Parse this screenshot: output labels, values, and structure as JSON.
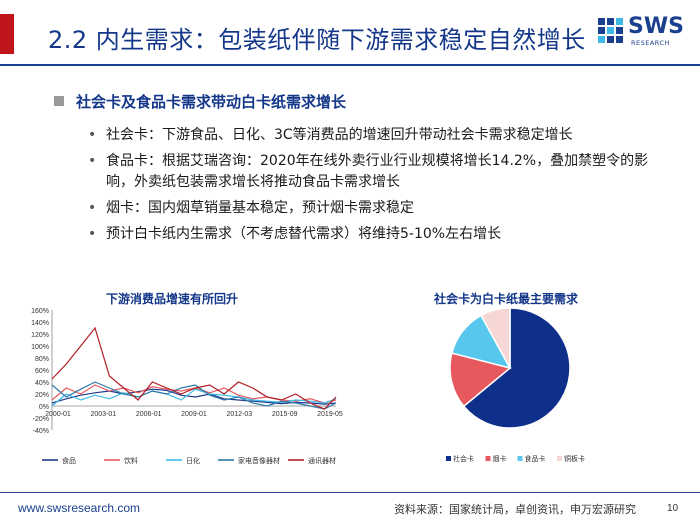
{
  "header": {
    "title": "2.2 内生需求：包装纸伴随下游需求稳定自然增长",
    "logo_word": "SWS",
    "logo_sub": "RESEARCH",
    "accent_color": "#c0151b",
    "brand_color": "#1b3f8f"
  },
  "section": {
    "heading": "社会卡及食品卡需求带动白卡纸需求增长",
    "bullets": [
      "社会卡：下游食品、日化、3C等消费品的增速回升带动社会卡需求稳定增长",
      "食品卡：根据艾瑞咨询：2020年在线外卖行业行业规模将增长14.2%，叠加禁塑令的影响，外卖纸包装需求增长将推动食品卡需求增长",
      "烟卡：国内烟草销量基本稳定，预计烟卡需求稳定",
      "预计白卡纸内生需求（不考虑替代需求）将维持5-10%左右增长"
    ]
  },
  "chart_data": [
    {
      "type": "line",
      "title": "下游消费品增速有所回升",
      "ylim": [
        -0.4,
        1.6
      ],
      "y_ticks": [
        "160%",
        "140%",
        "120%",
        "100%",
        "80%",
        "60%",
        "40%",
        "20%",
        "0%",
        "-20%",
        "-40%"
      ],
      "x_ticks": [
        "2000-01",
        "2003-01",
        "2006-01",
        "2009-01",
        "2012-03",
        "2015-09",
        "2019-05"
      ],
      "x_range": [
        2000.0,
        2019.8
      ],
      "legend_position": "bottom",
      "series": [
        {
          "name": "食品",
          "color": "#1f3a8a",
          "x": [
            2000,
            2001,
            2002,
            2003,
            2004,
            2005,
            2006,
            2007,
            2008,
            2009,
            2010,
            2011,
            2012,
            2013,
            2014,
            2015,
            2016,
            2017,
            2018,
            2019,
            2019.8
          ],
          "y": [
            0.05,
            0.12,
            0.18,
            0.22,
            0.25,
            0.2,
            0.24,
            0.28,
            0.26,
            0.18,
            0.15,
            0.2,
            0.12,
            0.1,
            0.08,
            0.06,
            0.04,
            0.06,
            0.05,
            0.03,
            0.05
          ]
        },
        {
          "name": "饮料",
          "color": "#e8595f",
          "x": [
            2000,
            2001,
            2002,
            2003,
            2004,
            2005,
            2006,
            2007,
            2008,
            2009,
            2010,
            2011,
            2012,
            2013,
            2014,
            2015,
            2016,
            2017,
            2018,
            2019,
            2019.8
          ],
          "y": [
            0.1,
            0.3,
            0.2,
            0.35,
            0.25,
            0.3,
            0.22,
            0.32,
            0.28,
            0.25,
            0.3,
            0.22,
            0.3,
            0.18,
            0.12,
            0.15,
            0.1,
            0.08,
            0.12,
            0.05,
            0.1
          ]
        },
        {
          "name": "日化",
          "color": "#3fb9e6",
          "x": [
            2000,
            2001,
            2002,
            2003,
            2004,
            2005,
            2006,
            2007,
            2008,
            2009,
            2010,
            2011,
            2012,
            2013,
            2014,
            2015,
            2016,
            2017,
            2018,
            2019,
            2019.8
          ],
          "y": [
            0.0,
            0.2,
            0.1,
            0.18,
            0.12,
            0.22,
            0.15,
            0.25,
            0.2,
            0.1,
            0.28,
            0.2,
            0.18,
            0.15,
            0.1,
            0.08,
            0.06,
            0.1,
            0.08,
            0.05,
            0.12
          ]
        },
        {
          "name": "家电音像器材",
          "color": "#2f7aa8",
          "x": [
            2000,
            2001,
            2002,
            2003,
            2004,
            2005,
            2006,
            2007,
            2008,
            2009,
            2010,
            2011,
            2012,
            2013,
            2014,
            2015,
            2016,
            2017,
            2018,
            2019,
            2019.8
          ],
          "y": [
            0.35,
            0.15,
            0.28,
            0.4,
            0.3,
            0.2,
            0.15,
            0.25,
            0.2,
            0.3,
            0.35,
            0.18,
            0.1,
            0.15,
            0.05,
            0.0,
            0.08,
            0.05,
            0.0,
            -0.05,
            0.05
          ]
        },
        {
          "name": "通讯器材",
          "color": "#b21e26",
          "x": [
            2000,
            2001,
            2002,
            2003,
            2004,
            2005,
            2006,
            2007,
            2008,
            2009,
            2010,
            2011,
            2012,
            2013,
            2014,
            2015,
            2016,
            2017,
            2018,
            2019,
            2019.8
          ],
          "y": [
            0.45,
            0.7,
            1.0,
            1.3,
            0.5,
            0.3,
            0.1,
            0.4,
            0.3,
            0.2,
            0.3,
            0.35,
            0.2,
            0.4,
            0.3,
            0.15,
            0.1,
            0.2,
            0.05,
            -0.05,
            0.15
          ]
        }
      ]
    },
    {
      "type": "pie",
      "title": "社会卡为白卡纸最主要需求",
      "legend_position": "bottom",
      "slices": [
        {
          "name": "社会卡",
          "value": 64,
          "color": "#0e2f8a"
        },
        {
          "name": "烟卡",
          "value": 15,
          "color": "#e8595f"
        },
        {
          "name": "食品卡",
          "value": 13,
          "color": "#58c7ee"
        },
        {
          "name": "铜板卡",
          "value": 8,
          "color": "#f6d7d6"
        }
      ]
    }
  ],
  "footer": {
    "website": "www.swsresearch.com",
    "source": "资料来源：国家统计局，卓创资讯，申万宏源研究",
    "page": "10"
  }
}
